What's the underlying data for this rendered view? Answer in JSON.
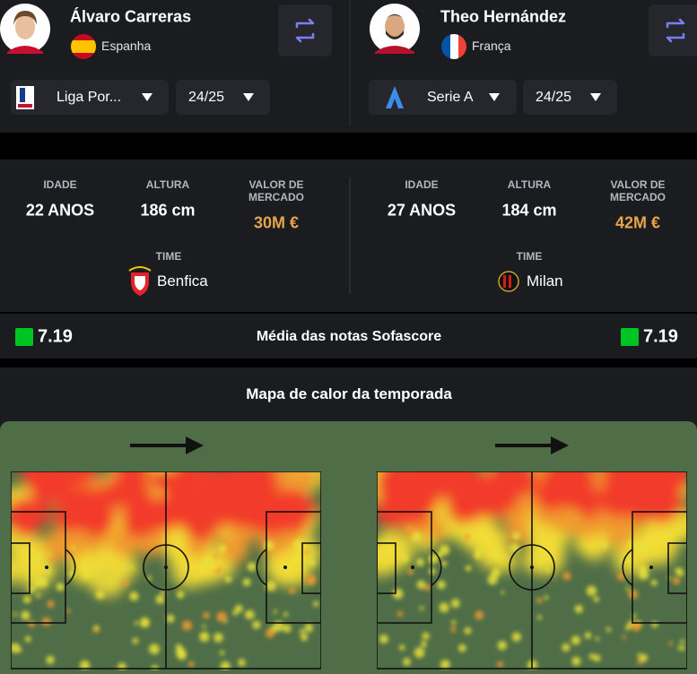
{
  "players": [
    {
      "name": "Álvaro Carreras",
      "country": "Espanha",
      "league": "Liga Por...",
      "season": "24/25",
      "age": "22 ANOS",
      "height": "186 cm",
      "market_value": "30M €",
      "team": "Benfica",
      "rating": 7.19
    },
    {
      "name": "Theo Hernández",
      "country": "França",
      "league": "Serie A",
      "season": "24/25",
      "age": "27 ANOS",
      "height": "184 cm",
      "market_value": "42M €",
      "team": "Milan",
      "rating": 7.19
    }
  ],
  "stat_labels": {
    "age": "IDADE",
    "height": "ALTURA",
    "market_value": "VALOR DE MERCADO",
    "team": "TIME"
  },
  "rating_label": "Média das notas Sofascore",
  "heatmap_title": "Mapa de calor da temporada"
}
